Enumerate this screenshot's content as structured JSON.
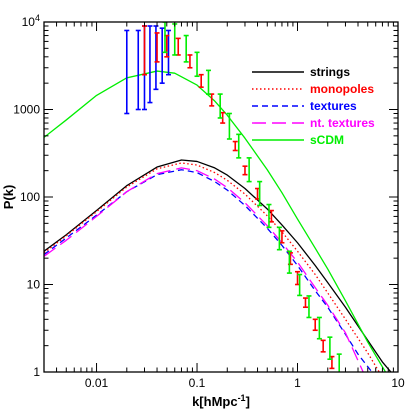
{
  "chart_data": {
    "type": "line",
    "title": "",
    "xlabel": "k[hMpc",
    "xlabel_sup": "-1",
    "xlabel_end": "]",
    "ylabel": "P(k)",
    "x_scale": "log",
    "y_scale": "log",
    "xlim": [
      0.003,
      10
    ],
    "ylim": [
      1,
      10000
    ],
    "x_ticks": [
      {
        "value": 0.01,
        "label": "0.01"
      },
      {
        "value": 0.1,
        "label": "0.1"
      },
      {
        "value": 1,
        "label": "1"
      },
      {
        "value": 10,
        "label": "10"
      }
    ],
    "y_ticks": [
      {
        "value": 1,
        "label": "1"
      },
      {
        "value": 10,
        "label": "10"
      },
      {
        "value": 100,
        "label": "100"
      },
      {
        "value": 1000,
        "label": "1000"
      },
      {
        "value": 10000,
        "label": "10",
        "sup": "4"
      }
    ],
    "grid": false,
    "legend_position": "top-right",
    "series": [
      {
        "name": "strings",
        "color": "#000000",
        "dash": "solid",
        "x": [
          0.003,
          0.005,
          0.01,
          0.02,
          0.04,
          0.07,
          0.1,
          0.15,
          0.2,
          0.3,
          0.5,
          0.7,
          1,
          1.5,
          2,
          3,
          5,
          7,
          8.5
        ],
        "y": [
          24,
          37,
          70,
          135,
          220,
          265,
          255,
          215,
          178,
          125,
          73,
          48,
          30,
          16.5,
          10.5,
          5.5,
          2.3,
          1.3,
          1.0
        ]
      },
      {
        "name": "monopoles",
        "color": "#ff0000",
        "dash": "dotted",
        "x": [
          0.003,
          0.005,
          0.01,
          0.02,
          0.04,
          0.07,
          0.1,
          0.15,
          0.2,
          0.3,
          0.5,
          0.7,
          1,
          1.5,
          2,
          3,
          5,
          6.5
        ],
        "y": [
          23,
          36,
          68,
          130,
          210,
          245,
          232,
          190,
          155,
          108,
          61,
          40,
          24,
          13,
          8,
          4,
          1.65,
          1.0
        ]
      },
      {
        "name": "textures",
        "color": "#0000ff",
        "dash": "dashed",
        "x": [
          0.003,
          0.005,
          0.01,
          0.02,
          0.04,
          0.07,
          0.1,
          0.15,
          0.2,
          0.3,
          0.5,
          0.7,
          1,
          1.5,
          2,
          3,
          4,
          5.5
        ],
        "y": [
          22,
          34,
          62,
          115,
          180,
          205,
          190,
          150,
          120,
          80,
          44,
          28,
          16.5,
          8.5,
          5.5,
          2.7,
          1.6,
          1.0
        ]
      },
      {
        "name": "nt. textures",
        "color": "#ff00ff",
        "dash": "longdash",
        "x": [
          0.003,
          0.005,
          0.01,
          0.02,
          0.04,
          0.07,
          0.1,
          0.15,
          0.2,
          0.3,
          0.5,
          0.7,
          1,
          1.5,
          2,
          3,
          4.5
        ],
        "y": [
          21,
          32,
          60,
          115,
          185,
          215,
          200,
          160,
          128,
          86,
          47,
          30,
          18,
          9.2,
          5.8,
          2.8,
          1.0
        ]
      },
      {
        "name": "sCDM",
        "color": "#00ee00",
        "dash": "solid",
        "x": [
          0.003,
          0.005,
          0.01,
          0.02,
          0.04,
          0.06,
          0.1,
          0.15,
          0.2,
          0.3,
          0.5,
          0.7,
          1,
          1.5,
          2,
          3,
          5,
          7.5
        ],
        "y": [
          480,
          760,
          1450,
          2300,
          2750,
          2600,
          1900,
          1250,
          860,
          470,
          205,
          112,
          56,
          26,
          15,
          6.5,
          2.2,
          1.0
        ]
      }
    ],
    "error_bars": [
      {
        "name": "blue",
        "color": "#0000ff",
        "points": [
          {
            "x": 0.02,
            "y": 2700,
            "lo": 900,
            "hi": 8000
          },
          {
            "x": 0.026,
            "y": 2000,
            "lo": 1000,
            "hi": 8000
          },
          {
            "x": 0.03,
            "y": 2300,
            "lo": 1000,
            "hi": 9000
          },
          {
            "x": 0.034,
            "y": 2900,
            "lo": 1200,
            "hi": 9000
          },
          {
            "x": 0.039,
            "y": 3800,
            "lo": 1700,
            "hi": 9000
          },
          {
            "x": 0.045,
            "y": 4200,
            "lo": 2000,
            "hi": 8500
          },
          {
            "x": 0.052,
            "y": 4600,
            "lo": 2500,
            "hi": 8000
          }
        ]
      },
      {
        "name": "red",
        "color": "#ff0000",
        "points": [
          {
            "x": 0.03,
            "y": 4500,
            "lo": 2500,
            "hi": 9000
          },
          {
            "x": 0.04,
            "y": 5000,
            "lo": 3500,
            "hi": 7500
          },
          {
            "x": 0.05,
            "y": 5500,
            "lo": 4000,
            "hi": 7000
          },
          {
            "x": 0.065,
            "y": 5200,
            "lo": 4200,
            "hi": 6500
          },
          {
            "x": 0.085,
            "y": 3500,
            "lo": 3000,
            "hi": 4200
          },
          {
            "x": 0.11,
            "y": 2100,
            "lo": 1800,
            "hi": 2500
          },
          {
            "x": 0.14,
            "y": 1300,
            "lo": 1100,
            "hi": 1500
          },
          {
            "x": 0.18,
            "y": 800,
            "lo": 700,
            "hi": 920
          },
          {
            "x": 0.24,
            "y": 380,
            "lo": 340,
            "hi": 430
          },
          {
            "x": 0.3,
            "y": 200,
            "lo": 180,
            "hi": 225
          },
          {
            "x": 0.4,
            "y": 110,
            "lo": 95,
            "hi": 125
          },
          {
            "x": 0.55,
            "y": 60,
            "lo": 52,
            "hi": 70
          },
          {
            "x": 0.7,
            "y": 35,
            "lo": 30,
            "hi": 41
          },
          {
            "x": 0.85,
            "y": 20,
            "lo": 17,
            "hi": 23
          },
          {
            "x": 1.0,
            "y": 12,
            "lo": 10,
            "hi": 14
          },
          {
            "x": 1.2,
            "y": 6.2,
            "lo": 5.5,
            "hi": 7
          },
          {
            "x": 1.5,
            "y": 3.5,
            "lo": 3,
            "hi": 4
          },
          {
            "x": 1.8,
            "y": 2.0,
            "lo": 1.7,
            "hi": 2.3
          },
          {
            "x": 2.2,
            "y": 1.3,
            "lo": 1.1,
            "hi": 1.5
          }
        ]
      },
      {
        "name": "green",
        "color": "#00ee00",
        "points": [
          {
            "x": 0.048,
            "y": 7000,
            "lo": 4500,
            "hi": 10000
          },
          {
            "x": 0.06,
            "y": 6200,
            "lo": 4200,
            "hi": 9500
          },
          {
            "x": 0.078,
            "y": 4800,
            "lo": 3500,
            "hi": 7000
          },
          {
            "x": 0.1,
            "y": 3200,
            "lo": 2400,
            "hi": 4500
          },
          {
            "x": 0.13,
            "y": 2000,
            "lo": 1500,
            "hi": 2800
          },
          {
            "x": 0.17,
            "y": 1100,
            "lo": 800,
            "hi": 1500
          },
          {
            "x": 0.21,
            "y": 640,
            "lo": 460,
            "hi": 900
          },
          {
            "x": 0.26,
            "y": 380,
            "lo": 280,
            "hi": 520
          },
          {
            "x": 0.33,
            "y": 200,
            "lo": 150,
            "hi": 280
          },
          {
            "x": 0.42,
            "y": 110,
            "lo": 80,
            "hi": 150
          },
          {
            "x": 0.52,
            "y": 60,
            "lo": 45,
            "hi": 82
          },
          {
            "x": 0.66,
            "y": 33,
            "lo": 25,
            "hi": 45
          },
          {
            "x": 0.83,
            "y": 18,
            "lo": 13.5,
            "hi": 24
          },
          {
            "x": 1.05,
            "y": 10,
            "lo": 7.5,
            "hi": 13
          },
          {
            "x": 1.3,
            "y": 5.6,
            "lo": 4.2,
            "hi": 7.4
          },
          {
            "x": 1.65,
            "y": 3.2,
            "lo": 2.4,
            "hi": 4.2
          },
          {
            "x": 2.1,
            "y": 1.9,
            "lo": 1.4,
            "hi": 2.5
          },
          {
            "x": 2.6,
            "y": 1.2,
            "lo": 0.9,
            "hi": 1.6
          }
        ]
      }
    ]
  }
}
